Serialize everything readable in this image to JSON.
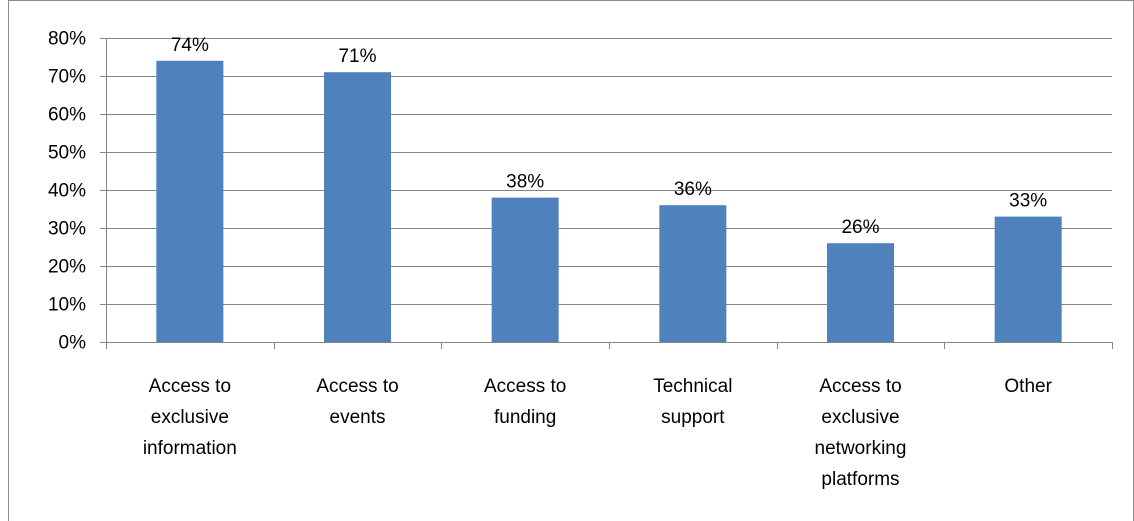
{
  "chart_data": {
    "type": "bar",
    "title": "",
    "xlabel": "",
    "ylabel": "",
    "categories": [
      [
        "Access to",
        "exclusive",
        "information"
      ],
      [
        "Access to",
        "events"
      ],
      [
        "Access to",
        "funding"
      ],
      [
        "Technical",
        "support"
      ],
      [
        "Access to",
        "exclusive",
        "networking",
        "platforms"
      ],
      [
        "Other"
      ]
    ],
    "values": [
      74,
      71,
      38,
      36,
      26,
      33
    ],
    "value_labels": [
      "74%",
      "71%",
      "38%",
      "36%",
      "26%",
      "33%"
    ],
    "ylim": [
      0,
      80
    ],
    "yticks": [
      "0%",
      "10%",
      "20%",
      "30%",
      "40%",
      "50%",
      "60%",
      "70%",
      "80%"
    ],
    "grid": true,
    "legend": "none",
    "colors": {
      "bar": "#4f81bd",
      "grid": "#868686",
      "axis": "#868686",
      "frame": "#8c8c8c"
    }
  }
}
